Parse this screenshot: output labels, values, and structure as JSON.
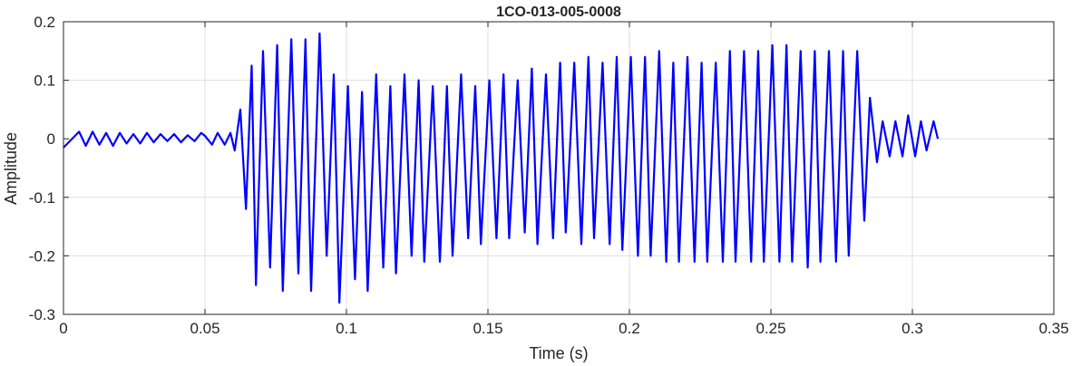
{
  "chart_data": {
    "type": "line",
    "title": "1CO-013-005-0008",
    "xlabel": "Time (s)",
    "ylabel": "Amplitude",
    "xlim": [
      0,
      0.35
    ],
    "ylim": [
      -0.3,
      0.2
    ],
    "xticks": [
      0,
      0.05,
      0.1,
      0.15,
      0.2,
      0.25,
      0.3,
      0.35
    ],
    "xtick_labels": [
      "0",
      "0.05",
      "0.1",
      "0.15",
      "0.2",
      "0.25",
      "0.3",
      "0.35"
    ],
    "yticks": [
      -0.3,
      -0.2,
      -0.1,
      0,
      0.1,
      0.2
    ],
    "ytick_labels": [
      "-0.3",
      "-0.2",
      "-0.1",
      "0",
      "0.1",
      "0.2"
    ],
    "grid": true,
    "line_color": "#0000ff",
    "series": [
      {
        "x": [
          0,
          0.0055,
          0.0079,
          0.0103,
          0.0127,
          0.0151,
          0.0175,
          0.0199,
          0.0223,
          0.0247,
          0.0271,
          0.0295,
          0.0319,
          0.0343,
          0.0367,
          0.0391,
          0.0415,
          0.0439,
          0.0463,
          0.0487,
          0.05,
          0.0525,
          0.0545,
          0.057,
          0.059,
          0.0605,
          0.0625,
          0.0645,
          0.0665,
          0.068,
          0.0705,
          0.073,
          0.0755,
          0.0775,
          0.0805,
          0.083,
          0.0855,
          0.0875,
          0.0905,
          0.093,
          0.0955,
          0.0975,
          0.1005,
          0.103,
          0.1055,
          0.1075,
          0.1105,
          0.113,
          0.1155,
          0.1175,
          0.1205,
          0.123,
          0.1255,
          0.1275,
          0.1305,
          0.133,
          0.1355,
          0.1375,
          0.1405,
          0.143,
          0.1455,
          0.1475,
          0.1505,
          0.153,
          0.1555,
          0.1575,
          0.1605,
          0.163,
          0.1655,
          0.1675,
          0.1705,
          0.173,
          0.1755,
          0.1775,
          0.1805,
          0.183,
          0.1855,
          0.1875,
          0.1905,
          0.193,
          0.1955,
          0.1975,
          0.2005,
          0.203,
          0.2055,
          0.2075,
          0.2105,
          0.213,
          0.2155,
          0.2175,
          0.2205,
          0.223,
          0.2255,
          0.2275,
          0.2305,
          0.233,
          0.2355,
          0.2375,
          0.2405,
          0.243,
          0.2455,
          0.2475,
          0.2505,
          0.253,
          0.2555,
          0.2575,
          0.2605,
          0.263,
          0.2655,
          0.2675,
          0.2705,
          0.273,
          0.2755,
          0.2775,
          0.2805,
          0.283,
          0.285,
          0.2875,
          0.2895,
          0.292,
          0.294,
          0.2965,
          0.2985,
          0.301,
          0.303,
          0.305,
          0.3075,
          0.309
        ],
        "y": [
          -0.015,
          0.012,
          -0.012,
          0.012,
          -0.01,
          0.01,
          -0.012,
          0.01,
          -0.008,
          0.008,
          -0.008,
          0.01,
          -0.006,
          0.008,
          -0.004,
          0.008,
          -0.006,
          0.006,
          -0.004,
          0.01,
          0.005,
          -0.01,
          0.01,
          -0.01,
          0.01,
          -0.02,
          0.05,
          -0.12,
          0.125,
          -0.25,
          0.15,
          -0.22,
          0.16,
          -0.26,
          0.17,
          -0.23,
          0.17,
          -0.26,
          0.18,
          -0.2,
          0.11,
          -0.28,
          0.09,
          -0.24,
          0.08,
          -0.26,
          0.11,
          -0.22,
          0.09,
          -0.23,
          0.11,
          -0.2,
          0.1,
          -0.21,
          0.09,
          -0.21,
          0.09,
          -0.2,
          0.11,
          -0.17,
          0.09,
          -0.18,
          0.1,
          -0.17,
          0.11,
          -0.17,
          0.1,
          -0.16,
          0.12,
          -0.18,
          0.11,
          -0.17,
          0.13,
          -0.16,
          0.13,
          -0.18,
          0.14,
          -0.17,
          0.13,
          -0.18,
          0.14,
          -0.19,
          0.14,
          -0.2,
          0.14,
          -0.2,
          0.15,
          -0.21,
          0.13,
          -0.21,
          0.14,
          -0.21,
          0.13,
          -0.21,
          0.13,
          -0.21,
          0.15,
          -0.21,
          0.15,
          -0.21,
          0.15,
          -0.21,
          0.16,
          -0.21,
          0.16,
          -0.21,
          0.15,
          -0.22,
          0.15,
          -0.21,
          0.15,
          -0.21,
          0.15,
          -0.2,
          0.15,
          -0.14,
          0.07,
          -0.04,
          0.03,
          -0.03,
          0.03,
          -0.03,
          0.04,
          -0.03,
          0.03,
          -0.02,
          0.03,
          0.0
        ]
      }
    ]
  }
}
